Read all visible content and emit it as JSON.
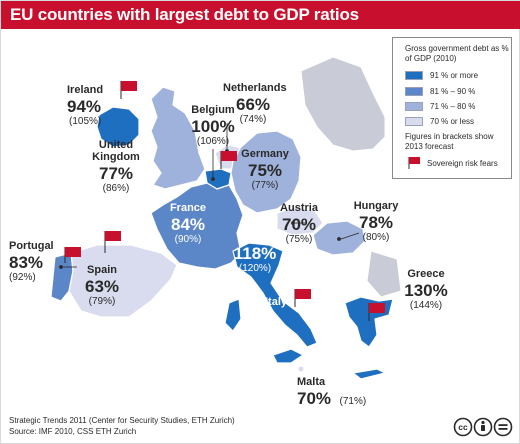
{
  "title": "EU countries with largest debt to GDP ratios",
  "colors": {
    "banner": "#c8102e",
    "bin_91_plus": "#1f6fc1",
    "bin_81_90": "#5b86c8",
    "bin_71_80": "#9fb2dc",
    "bin_70_less": "#d8dcee",
    "flag": "#c8102e"
  },
  "legend": {
    "title": "Gross government debt as % of GDP (2010)",
    "bins": [
      {
        "label": "91 % or more",
        "color": "#1f6fc1"
      },
      {
        "label": "81 % – 90 %",
        "color": "#5b86c8"
      },
      {
        "label": "71 % – 80 %",
        "color": "#9fb2dc"
      },
      {
        "label": "70 % or less",
        "color": "#d8dcee"
      }
    ],
    "note": "Figures in brackets show 2013 forecast",
    "flag_label": "Sovereign risk fears",
    "flag_icon": "flag-icon"
  },
  "countries": {
    "ireland": {
      "name": "Ireland",
      "value": "94%",
      "forecast": "(105%)",
      "risk_flag": true
    },
    "uk": {
      "name": "United Kingdom",
      "value": "77%",
      "forecast": "(86%)",
      "risk_flag": false
    },
    "belgium": {
      "name": "Belgium",
      "value": "100%",
      "forecast": "(106%)",
      "risk_flag": true
    },
    "netherlands": {
      "name": "Netherlands",
      "value": "66%",
      "forecast": "(74%)",
      "risk_flag": false
    },
    "germany": {
      "name": "Germany",
      "value": "75%",
      "forecast": "(77%)",
      "risk_flag": false
    },
    "france": {
      "name": "France",
      "value": "84%",
      "forecast": "(90%)",
      "risk_flag": false
    },
    "austria": {
      "name": "Austria",
      "value": "70%",
      "forecast": "(75%)",
      "risk_flag": false
    },
    "hungary": {
      "name": "Hungary",
      "value": "78%",
      "forecast": "(80%)",
      "risk_flag": false
    },
    "portugal": {
      "name": "Portugal",
      "value": "83%",
      "forecast": "(92%)",
      "risk_flag": true
    },
    "spain": {
      "name": "Spain",
      "value": "63%",
      "forecast": "(79%)",
      "risk_flag": true
    },
    "italy": {
      "name": "Italy",
      "value": "118%",
      "forecast": "(120%)",
      "risk_flag": true
    },
    "greece": {
      "name": "Greece",
      "value": "130%",
      "forecast": "(144%)",
      "risk_flag": true
    },
    "malta": {
      "name": "Malta",
      "value": "70%",
      "forecast": "(71%)",
      "risk_flag": false
    }
  },
  "footer": {
    "line1": "Strategic Trends 2011 (Center for Security Studies, ETH Zurich)",
    "line2": "Source: IMF 2010, CSS ETH Zurich"
  },
  "license_icons": [
    "cc-icon",
    "by-icon",
    "nd-icon"
  ]
}
